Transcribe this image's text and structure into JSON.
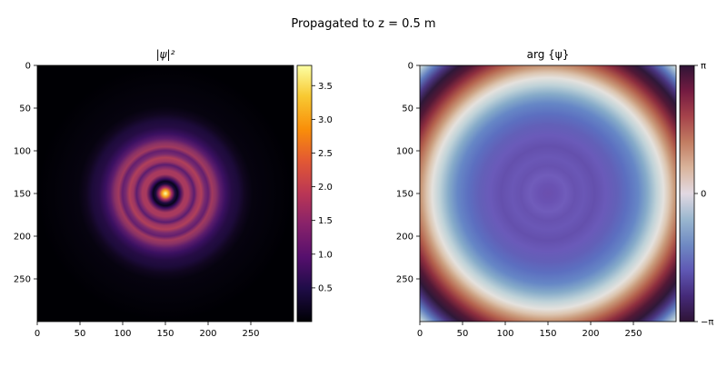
{
  "figure": {
    "suptitle": "Propagated to z = 0.5 m"
  },
  "chart_data": [
    {
      "type": "heatmap",
      "title": "|ψ|²",
      "colormap": "inferno",
      "xlim": [
        0,
        300
      ],
      "ylim": [
        300,
        0
      ],
      "xticks": [
        0,
        50,
        100,
        150,
        200,
        250
      ],
      "yticks": [
        0,
        50,
        100,
        150,
        200,
        250
      ],
      "center": [
        150,
        150
      ],
      "peak_value": 3.8,
      "ring_radii": [
        15,
        30,
        46,
        62
      ],
      "ring_values": [
        1.9,
        1.75,
        1.5,
        0.45
      ],
      "outer_halo_radius": 85,
      "colorbar": {
        "min": 0.0,
        "max": 3.8,
        "ticks": [
          0.5,
          1.0,
          1.5,
          2.0,
          2.5,
          3.0,
          3.5
        ],
        "tick_labels": [
          "0.5",
          "1.0",
          "1.5",
          "2.0",
          "2.5",
          "3.0",
          "3.5"
        ]
      }
    },
    {
      "type": "heatmap",
      "title": "arg {ψ}",
      "colormap": "twilight_shifted",
      "xlim": [
        0,
        300
      ],
      "ylim": [
        300,
        0
      ],
      "xticks": [
        0,
        50,
        100,
        150,
        200,
        250
      ],
      "yticks": [
        0,
        50,
        100,
        150,
        200,
        250
      ],
      "center": [
        150,
        150
      ],
      "phase_profile": "quadratic radial phase, violet center through blue, white, tan, dark red to black at corners",
      "colorbar": {
        "min": -3.14159,
        "max": 3.14159,
        "ticks": [
          3.14159,
          0,
          -3.14159
        ],
        "tick_labels": [
          "π",
          "0",
          "−π"
        ]
      }
    }
  ]
}
